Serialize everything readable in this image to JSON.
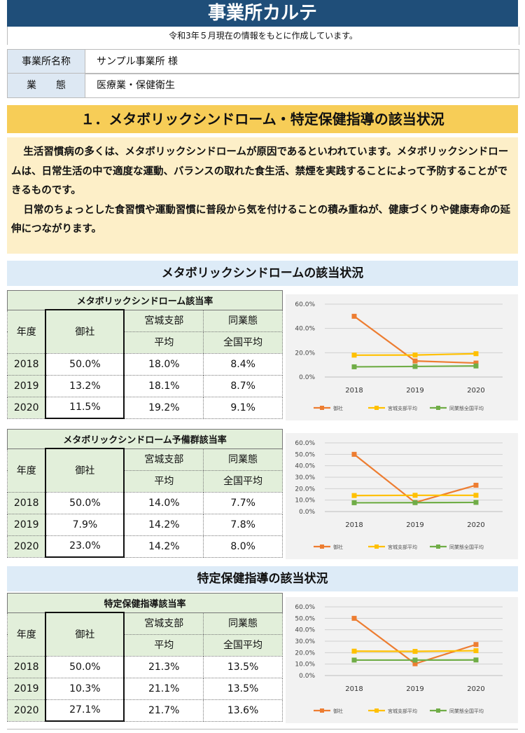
{
  "header": {
    "title": "事業所カルテ",
    "note": "令和3年５月現在の情報をもとに作成しています。"
  },
  "info": [
    {
      "label": "事業所名称",
      "value": "サンプル事業所 様"
    },
    {
      "label": "業　　態",
      "value": "医療業・保健衛生"
    }
  ],
  "section1": {
    "title": "１．メタボリックシンドローム・特定保健指導の該当状況",
    "paragraphs": [
      "生活習慣病の多くは、メタボリックシンドロームが原因であるといわれています。メタボリックシンドロームは、日常生活の中で適度な運動、バランスの取れた食生活、禁煙を実践することによって予防することができるものです。",
      "日常のちょっとした食習慣や運動習慣に普段から気を付けることの積み重ねが、健康づくりや健康寿命の延伸につながります。"
    ]
  },
  "subsections": {
    "metabo": "メタボリックシンドロームの該当状況",
    "tokutei": "特定保健指導の該当状況"
  },
  "table_headers": {
    "year": "年度",
    "ours": "御社",
    "miyagi_1": "宮城支部",
    "miyagi_2": "平均",
    "national_1": "同業態",
    "national_2": "全国平均"
  },
  "tables": [
    {
      "title": "メタボリックシンドローム該当率",
      "rows": [
        {
          "year": "2018",
          "ours": "50.0%",
          "miyagi": "18.0%",
          "national": "8.4%"
        },
        {
          "year": "2019",
          "ours": "13.2%",
          "miyagi": "18.1%",
          "national": "8.7%"
        },
        {
          "year": "2020",
          "ours": "11.5%",
          "miyagi": "19.2%",
          "national": "9.1%"
        }
      ]
    },
    {
      "title": "メタボリックシンドローム予備群該当率",
      "rows": [
        {
          "year": "2018",
          "ours": "50.0%",
          "miyagi": "14.0%",
          "national": "7.7%"
        },
        {
          "year": "2019",
          "ours": "7.9%",
          "miyagi": "14.2%",
          "national": "7.8%"
        },
        {
          "year": "2020",
          "ours": "23.0%",
          "miyagi": "14.2%",
          "national": "8.0%"
        }
      ]
    },
    {
      "title": "特定保健指導該当率",
      "rows": [
        {
          "year": "2018",
          "ours": "50.0%",
          "miyagi": "21.3%",
          "national": "13.5%"
        },
        {
          "year": "2019",
          "ours": "10.3%",
          "miyagi": "21.1%",
          "national": "13.5%"
        },
        {
          "year": "2020",
          "ours": "27.1%",
          "miyagi": "21.7%",
          "national": "13.6%"
        }
      ]
    }
  ],
  "chart_data": [
    {
      "type": "line",
      "x": [
        "2018",
        "2019",
        "2020"
      ],
      "ylim": [
        0,
        60
      ],
      "yticks": [
        "0.0%",
        "20.0%",
        "40.0%",
        "60.0%"
      ],
      "grid": true,
      "legend": "bottom",
      "series": [
        {
          "name": "御社",
          "color": "#ed7d31",
          "values": [
            50.0,
            13.2,
            11.5
          ]
        },
        {
          "name": "宮城支部平均",
          "color": "#ffc000",
          "values": [
            18.0,
            18.1,
            19.2
          ]
        },
        {
          "name": "同業態全国平均",
          "color": "#70ad47",
          "values": [
            8.4,
            8.7,
            9.1
          ]
        }
      ]
    },
    {
      "type": "line",
      "x": [
        "2018",
        "2019",
        "2020"
      ],
      "ylim": [
        0,
        60
      ],
      "yticks": [
        "0.0%",
        "10.0%",
        "20.0%",
        "30.0%",
        "40.0%",
        "50.0%",
        "60.0%"
      ],
      "grid": true,
      "legend": "bottom",
      "series": [
        {
          "name": "御社",
          "color": "#ed7d31",
          "values": [
            50.0,
            7.9,
            23.0
          ]
        },
        {
          "name": "宮城支部平均",
          "color": "#ffc000",
          "values": [
            14.0,
            14.2,
            14.2
          ]
        },
        {
          "name": "同業態全国平均",
          "color": "#70ad47",
          "values": [
            7.7,
            7.8,
            8.0
          ]
        }
      ]
    },
    {
      "type": "line",
      "x": [
        "2018",
        "2019",
        "2020"
      ],
      "ylim": [
        0,
        60
      ],
      "yticks": [
        "0.0%",
        "10.0%",
        "20.0%",
        "30.0%",
        "40.0%",
        "50.0%",
        "60.0%"
      ],
      "grid": true,
      "legend": "bottom",
      "series": [
        {
          "name": "御社",
          "color": "#ed7d31",
          "values": [
            50.0,
            10.3,
            27.1
          ]
        },
        {
          "name": "宮城支部平均",
          "color": "#ffc000",
          "values": [
            21.3,
            21.1,
            21.7
          ]
        },
        {
          "name": "同業態全国平均",
          "color": "#70ad47",
          "values": [
            13.5,
            13.5,
            13.6
          ]
        }
      ]
    }
  ]
}
